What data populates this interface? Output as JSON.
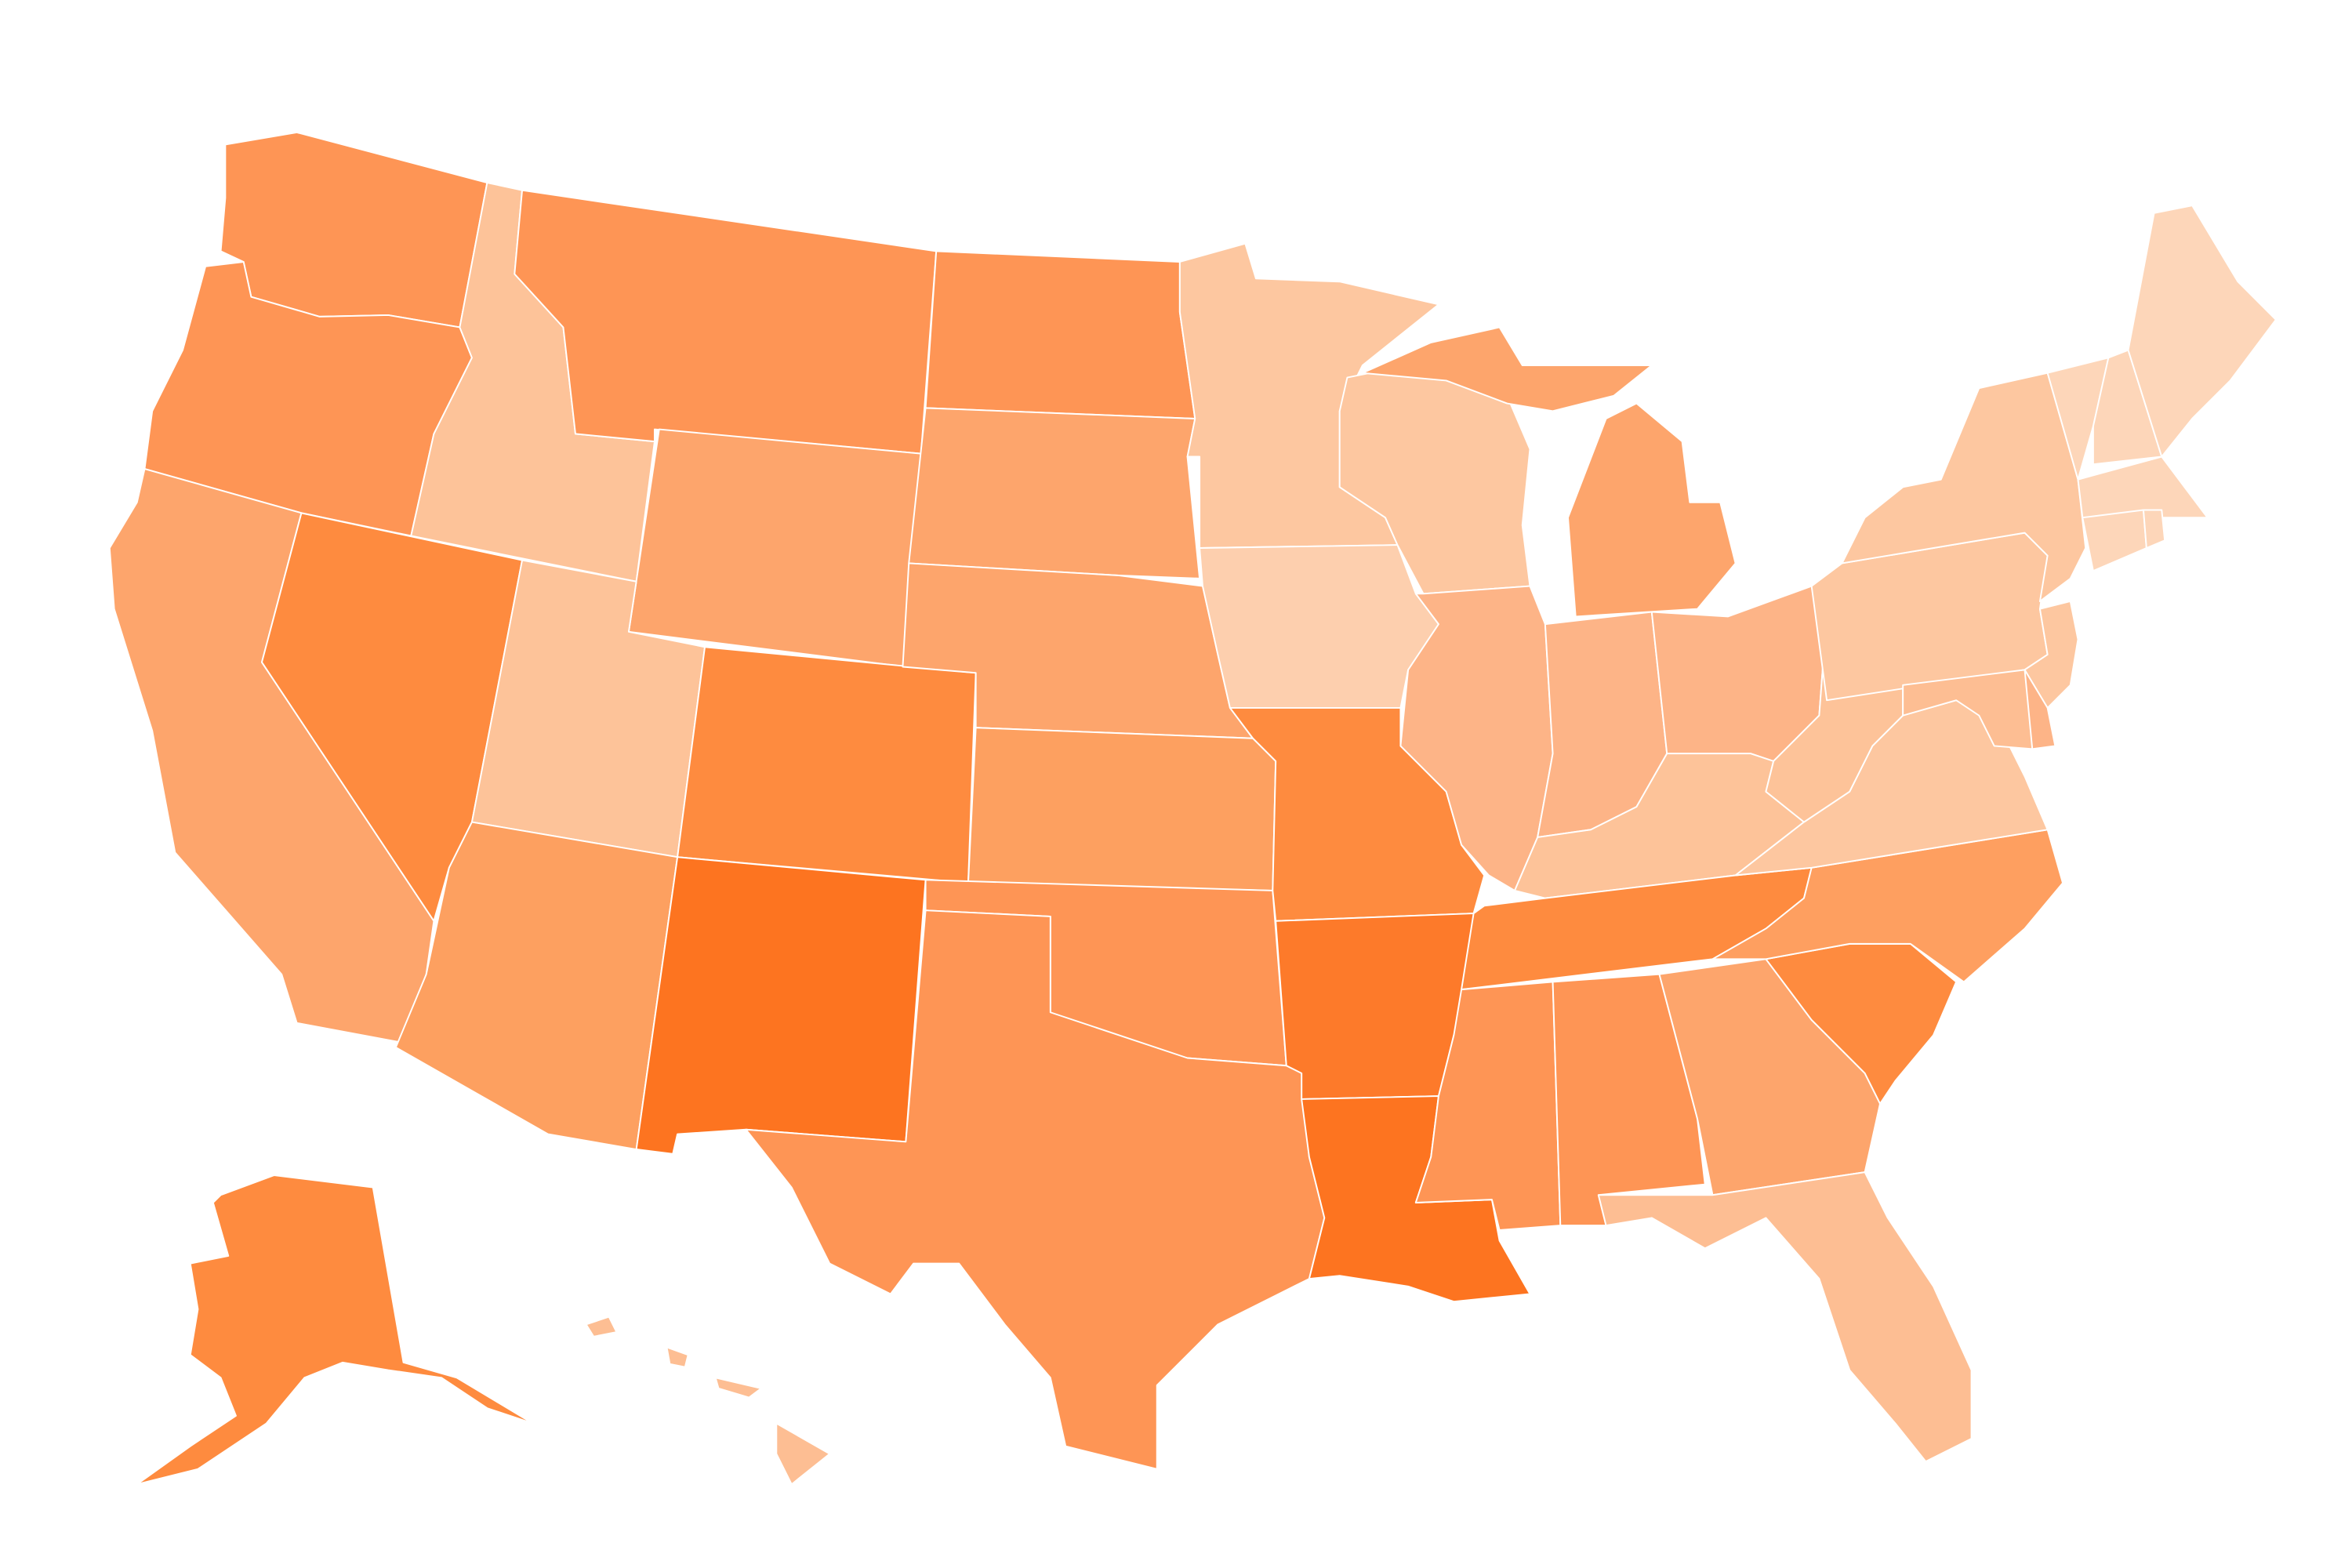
{
  "map": {
    "background": "#ffffff",
    "border_color": "#ffffff",
    "regions": [
      {
        "color": "#fe9555"
      },
      {
        "color": "#fe9555"
      },
      {
        "color": "#fda56c"
      },
      {
        "color": "#fdc399"
      },
      {
        "color": "#fe8b3f"
      },
      {
        "color": "#fe9555"
      },
      {
        "color": "#fda56c"
      },
      {
        "color": "#fdc399"
      },
      {
        "color": "#fda060"
      },
      {
        "color": "#fe8b3f"
      },
      {
        "color": "#fd7420"
      },
      {
        "color": "#fe9555"
      },
      {
        "color": "#fda56c"
      },
      {
        "color": "#fda56c"
      },
      {
        "color": "#fda060"
      },
      {
        "color": "#fe9555"
      },
      {
        "color": "#fe9555"
      },
      {
        "color": "#fdc7a0"
      },
      {
        "color": "#fdcfae"
      },
      {
        "color": "#fe8b3f"
      },
      {
        "color": "#fd7a2a"
      },
      {
        "color": "#fd7420"
      },
      {
        "color": "#fdc7a0"
      },
      {
        "color": "#fdb487"
      },
      {
        "color": "#fda56c"
      },
      {
        "color": "#fda56c"
      },
      {
        "color": "#fdb487"
      },
      {
        "color": "#fdb487"
      },
      {
        "color": "#fdc399"
      },
      {
        "color": "#fe8b3f"
      },
      {
        "color": "#fe9555"
      },
      {
        "color": "#fe9555"
      },
      {
        "color": "#fda56c"
      },
      {
        "color": "#fdbe93"
      },
      {
        "color": "#fe8b3f"
      },
      {
        "color": "#fe9f60"
      },
      {
        "color": "#fdc7a0"
      },
      {
        "color": "#fdc399"
      },
      {
        "color": "#fdc7a0"
      },
      {
        "color": "#fdc7a0"
      },
      {
        "color": "#fdd6b9"
      },
      {
        "color": "#fdd6b9"
      },
      {
        "color": "#fdd6b9"
      },
      {
        "color": "#fdd6b9"
      },
      {
        "color": "#fdd6b9"
      },
      {
        "color": "#fdd6b9"
      },
      {
        "color": "#fdc7a0"
      },
      {
        "color": "#fdb487"
      },
      {
        "color": "#fdbe93"
      },
      {
        "color": "#fe8b3f"
      },
      {
        "color": "#fdbe93"
      },
      {
        "color": "#fdbe93"
      },
      {
        "color": "#fdbe93"
      },
      {
        "color": "#fdbe93"
      }
    ]
  }
}
